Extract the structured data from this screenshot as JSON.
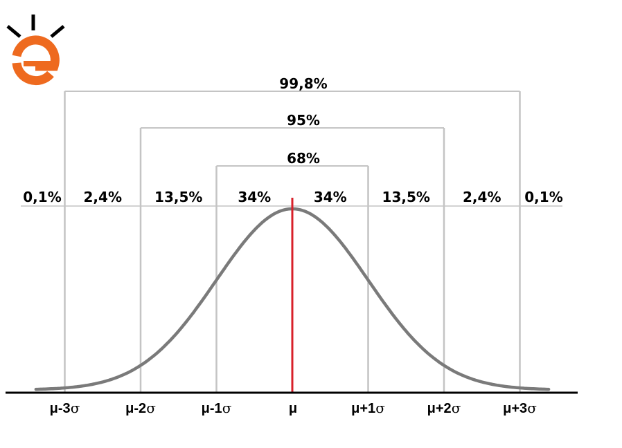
{
  "logo": {
    "letter": "e",
    "color": "#ee6a1f",
    "rays_color": "#000000"
  },
  "brackets": [
    {
      "label": "99,8%",
      "from": -3,
      "to": 3
    },
    {
      "label": "95%",
      "from": -2,
      "to": 2
    },
    {
      "label": "68%",
      "from": -1,
      "to": 1
    }
  ],
  "regions": [
    {
      "label": "0,1%",
      "from": -4,
      "to": -3
    },
    {
      "label": "2,4%",
      "from": -3,
      "to": -2
    },
    {
      "label": "13,5%",
      "from": -2,
      "to": -1
    },
    {
      "label": "34%",
      "from": -1,
      "to": 0
    },
    {
      "label": "34%",
      "from": 0,
      "to": 1
    },
    {
      "label": "13,5%",
      "from": 1,
      "to": 2
    },
    {
      "label": "2,4%",
      "from": 2,
      "to": 3
    },
    {
      "label": "0,1%",
      "from": 3,
      "to": 4
    }
  ],
  "ticks": [
    {
      "sigma": -3,
      "base": "μ-3",
      "sym": "σ"
    },
    {
      "sigma": -2,
      "base": "μ-2",
      "sym": "σ"
    },
    {
      "sigma": -1,
      "base": "μ-1",
      "sym": "σ"
    },
    {
      "sigma": 0,
      "base": "μ",
      "sym": ""
    },
    {
      "sigma": 1,
      "base": "μ+1",
      "sym": "σ"
    },
    {
      "sigma": 2,
      "base": "μ+2",
      "sym": "σ"
    },
    {
      "sigma": 3,
      "base": "μ+3",
      "sym": "σ"
    }
  ],
  "colors": {
    "curve": "#7a7a7a",
    "guides": "#c4c4c4",
    "mean_line": "#d8202a",
    "axis": "#000000"
  }
}
